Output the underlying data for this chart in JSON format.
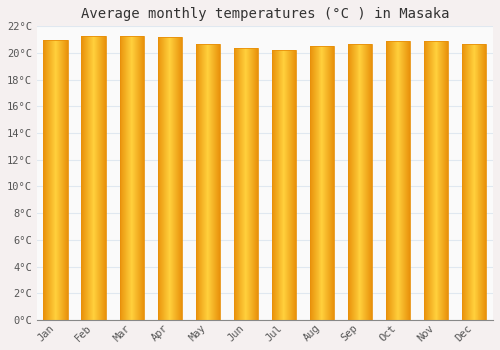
{
  "title": "Average monthly temperatures (°C ) in Masaka",
  "months": [
    "Jan",
    "Feb",
    "Mar",
    "Apr",
    "May",
    "Jun",
    "Jul",
    "Aug",
    "Sep",
    "Oct",
    "Nov",
    "Dec"
  ],
  "temperatures": [
    21.0,
    21.3,
    21.3,
    21.2,
    20.7,
    20.4,
    20.2,
    20.5,
    20.7,
    20.9,
    20.9,
    20.7
  ],
  "ylim": [
    0,
    22
  ],
  "yticks": [
    0,
    2,
    4,
    6,
    8,
    10,
    12,
    14,
    16,
    18,
    20,
    22
  ],
  "bar_color_center": "#FFD966",
  "bar_color_edge": "#E8900A",
  "background_color": "#F5F0F0",
  "plot_bg_color": "#FAFAFA",
  "grid_color": "#E0E8F0",
  "title_fontsize": 10,
  "tick_fontsize": 7.5,
  "font_family": "monospace",
  "bar_width": 0.65
}
